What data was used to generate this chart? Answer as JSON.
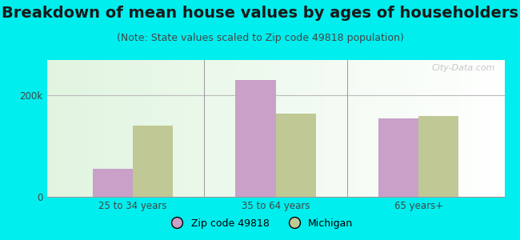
{
  "title": "Breakdown of mean house values by ages of householders",
  "subtitle": "(Note: State values scaled to Zip code 49818 population)",
  "categories": [
    "25 to 34 years",
    "35 to 64 years",
    "65 years+"
  ],
  "zip_values": [
    55000,
    230000,
    155000
  ],
  "mi_values": [
    140000,
    165000,
    160000
  ],
  "zip_color": "#c8a0c8",
  "mi_color": "#c0c896",
  "ylim": [
    0,
    270000
  ],
  "yticks": [
    0,
    200000
  ],
  "ytick_labels": [
    "0",
    "200k"
  ],
  "legend_zip": "Zip code 49818",
  "legend_mi": "Michigan",
  "bg_color": "#00eeee",
  "watermark": "City-Data.com",
  "title_fontsize": 14,
  "subtitle_fontsize": 9,
  "bar_width": 0.28
}
